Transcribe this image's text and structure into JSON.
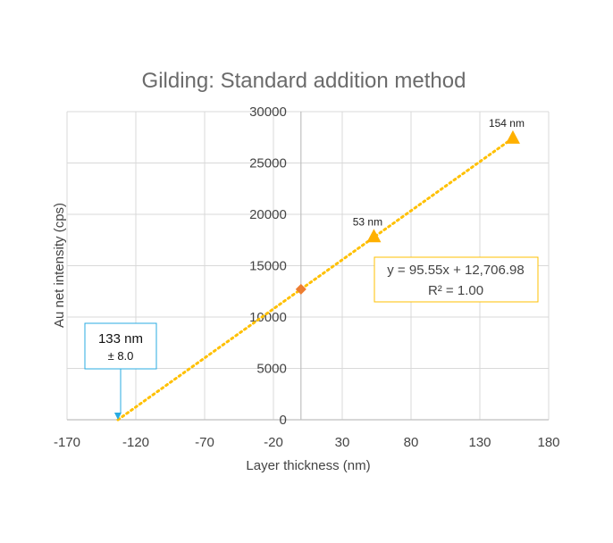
{
  "chart_data": {
    "type": "scatter",
    "title": "Gilding: Standard addition method",
    "xlabel": "Layer thickness (nm)",
    "ylabel": "Au net intensity (cps)",
    "xlim": [
      -170,
      180
    ],
    "ylim": [
      0,
      30000
    ],
    "xticks": [
      -170,
      -120,
      -70,
      -20,
      30,
      80,
      130,
      180
    ],
    "yticks": [
      0,
      5000,
      10000,
      15000,
      20000,
      25000,
      30000
    ],
    "grid": true,
    "series": [
      {
        "marker": "diamond",
        "color": "#ED7D31",
        "x": [
          0
        ],
        "y": [
          12707
        ]
      },
      {
        "marker": "triangle",
        "color": "#FFB000",
        "x": [
          53,
          154
        ],
        "y": [
          17800,
          27400
        ],
        "labels": [
          "53 nm",
          "154 nm"
        ]
      }
    ],
    "trendline": {
      "color": "#FFC000",
      "style": "dotted",
      "slope": 95.55,
      "intercept": 12706.98,
      "x_from": -133,
      "x_to": 154,
      "equation": "y = 95.55x + 12,706.98",
      "r2": "R² = 1.00"
    },
    "x_intercept_marker": {
      "x": -133,
      "y": 0,
      "color": "#29ABE2"
    },
    "callout": {
      "value": "133 nm",
      "uncertainty": "± 8.0",
      "color": "#29ABE2"
    }
  }
}
